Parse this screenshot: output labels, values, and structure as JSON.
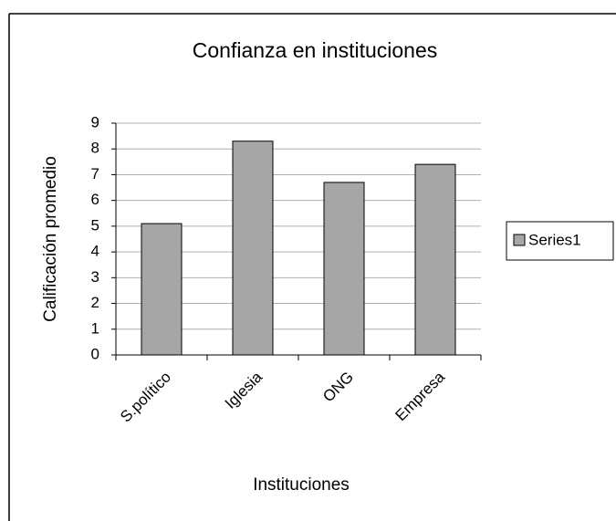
{
  "chart_data": {
    "type": "bar",
    "title": "Confianza en instituciones",
    "x_label": "Instituciones",
    "y_label": "Calificación promedio",
    "categories": [
      "S.político",
      "Iglesia",
      "ONG",
      "Empresa"
    ],
    "series": [
      {
        "name": "Series1",
        "color": "#a6a6a6",
        "values": [
          5.1,
          8.3,
          6.7,
          7.4
        ]
      }
    ],
    "ylim": [
      0,
      9
    ],
    "yticks": [
      0,
      1,
      2,
      3,
      4,
      5,
      6,
      7,
      8,
      9
    ],
    "grid": true,
    "legend": "right"
  }
}
